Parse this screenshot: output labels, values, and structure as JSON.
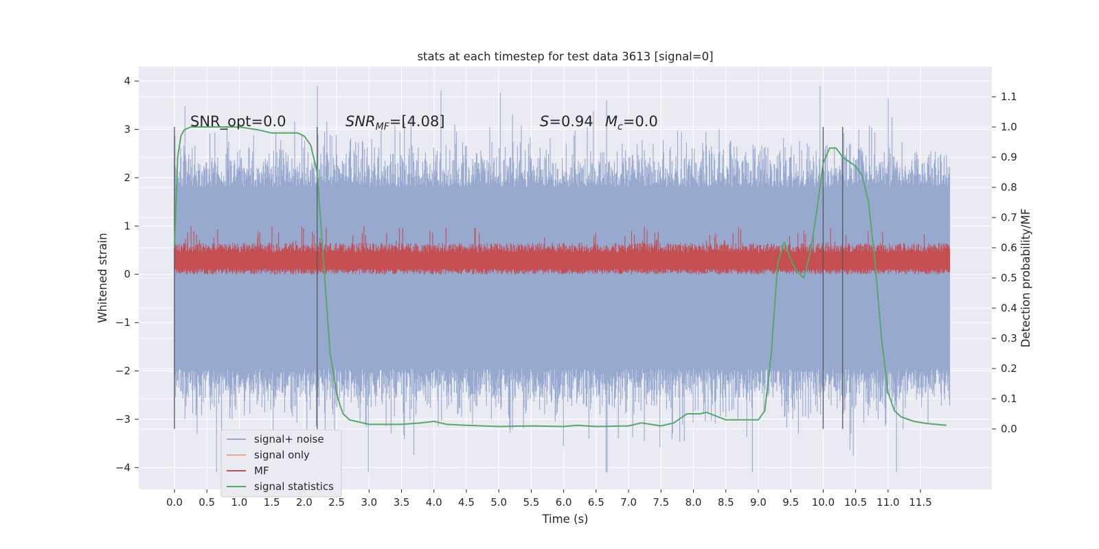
{
  "chart_data": {
    "type": "line",
    "title": "stats at each timestep for test data 3613 [signal=0]",
    "xlabel": "Time (s)",
    "ylabel": "Whitened strain",
    "y2label": "Detection probability/MF",
    "xlim": [
      -0.55,
      12.6
    ],
    "ylim": [
      -4.45,
      4.3
    ],
    "y2lim": [
      -0.2,
      1.2
    ],
    "grid": true,
    "legend_position": "lower-left",
    "x_ticks": [
      "0.0",
      "0.5",
      "1.0",
      "1.5",
      "2.0",
      "2.5",
      "3.0",
      "3.5",
      "4.0",
      "4.5",
      "5.0",
      "5.5",
      "6.0",
      "6.5",
      "7.0",
      "7.5",
      "8.0",
      "8.5",
      "9.0",
      "9.5",
      "10.0",
      "10.5",
      "11.0",
      "11.5"
    ],
    "y_ticks": [
      "4",
      "3",
      "2",
      "1",
      "0",
      "−1",
      "−2",
      "−3",
      "−4"
    ],
    "y2_ticks": [
      "1.1",
      "1.0",
      "0.9",
      "0.8",
      "0.7",
      "0.6",
      "0.5",
      "0.4",
      "0.3",
      "0.2",
      "0.1",
      "0.0"
    ],
    "annotations": {
      "snr_opt": "SNR_opt=0.0",
      "snr_mf_main": "SNR",
      "snr_mf_sub": "MF",
      "snr_mf_value": "=[4.08]",
      "s_symbol": "S",
      "s_value": "=0.94",
      "mc_symbol": "M",
      "mc_sub": "c",
      "mc_value": "=0.0"
    },
    "vertical_lines_x": [
      0.0,
      2.2,
      10.0,
      10.3
    ],
    "series": [
      {
        "name": "signal+ noise",
        "color": "#97a9cf",
        "axis": "left",
        "x_range": [
          0.0,
          11.95
        ],
        "envelope_typical": [
          -1.95,
          1.8
        ],
        "extremes": [
          -4.1,
          3.9
        ]
      },
      {
        "name": "signal only",
        "color": "#e8a88a",
        "axis": "left",
        "x": [],
        "y": []
      },
      {
        "name": "MF",
        "color": "#c44e52",
        "axis": "left",
        "x_range": [
          0.0,
          11.95
        ],
        "band": [
          0.0,
          0.55
        ],
        "peaks": 1.0
      },
      {
        "name": "signal statistics",
        "color": "#55a868",
        "axis": "right",
        "x": [
          0.0,
          0.05,
          0.1,
          0.15,
          0.25,
          0.5,
          1.0,
          1.3,
          1.5,
          1.7,
          1.9,
          2.0,
          2.1,
          2.2,
          2.3,
          2.4,
          2.5,
          2.55,
          2.6,
          2.7,
          2.8,
          3.0,
          3.5,
          3.8,
          4.0,
          4.2,
          4.5,
          5.0,
          5.5,
          6.0,
          6.2,
          6.5,
          7.0,
          7.2,
          7.5,
          7.7,
          7.9,
          8.1,
          8.2,
          8.5,
          8.8,
          9.0,
          9.1,
          9.2,
          9.3,
          9.4,
          9.5,
          9.6,
          9.7,
          9.8,
          9.9,
          10.0,
          10.1,
          10.2,
          10.3,
          10.5,
          10.6,
          10.7,
          10.8,
          10.9,
          11.0,
          11.1,
          11.2,
          11.4,
          11.6,
          11.9
        ],
        "y": [
          0.6,
          0.9,
          0.97,
          0.99,
          1.0,
          1.0,
          1.0,
          0.99,
          0.98,
          0.98,
          0.98,
          0.97,
          0.94,
          0.85,
          0.55,
          0.25,
          0.12,
          0.08,
          0.05,
          0.03,
          0.025,
          0.015,
          0.015,
          0.02,
          0.025,
          0.015,
          0.012,
          0.008,
          0.01,
          0.008,
          0.012,
          0.008,
          0.01,
          0.02,
          0.01,
          0.02,
          0.05,
          0.05,
          0.055,
          0.03,
          0.03,
          0.03,
          0.06,
          0.25,
          0.55,
          0.62,
          0.56,
          0.52,
          0.5,
          0.58,
          0.72,
          0.88,
          0.93,
          0.93,
          0.9,
          0.87,
          0.84,
          0.75,
          0.55,
          0.3,
          0.12,
          0.06,
          0.04,
          0.025,
          0.018,
          0.012
        ]
      }
    ]
  }
}
